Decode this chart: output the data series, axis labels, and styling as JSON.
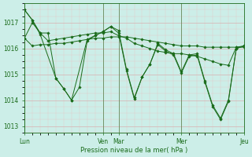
{
  "title": "",
  "xlabel": "Pression niveau de la mer( hPa )",
  "background_color": "#cceee8",
  "line_color": "#1a6b1a",
  "grid_color_major": "#d8b0b0",
  "grid_color_minor": "#e8c8c8",
  "ylim": [
    1012.75,
    1017.75
  ],
  "xlim": [
    0,
    168
  ],
  "day_labels": [
    "Lun",
    "Ven",
    "Mar",
    "Mer",
    "Jeu"
  ],
  "day_positions": [
    0,
    60,
    72,
    120,
    168
  ],
  "series1_x": [
    0,
    6,
    12,
    18,
    24,
    30,
    36,
    42,
    48,
    54,
    60,
    66,
    72,
    78,
    84,
    90,
    96,
    102,
    108,
    114,
    120,
    126,
    132,
    138,
    144,
    150,
    156,
    162,
    168
  ],
  "series1_y": [
    1016.4,
    1016.1,
    1016.15,
    1016.15,
    1016.2,
    1016.2,
    1016.25,
    1016.3,
    1016.35,
    1016.4,
    1016.4,
    1016.45,
    1016.45,
    1016.45,
    1016.4,
    1016.35,
    1016.3,
    1016.25,
    1016.2,
    1016.15,
    1016.1,
    1016.1,
    1016.1,
    1016.05,
    1016.05,
    1016.05,
    1016.05,
    1016.05,
    1016.05
  ],
  "series2_x": [
    0,
    6,
    12,
    18,
    24,
    30,
    36,
    42,
    48,
    54,
    60,
    66,
    72,
    78,
    84,
    90,
    96,
    102,
    108,
    114,
    120,
    126,
    132,
    138,
    144,
    150,
    156,
    162,
    168
  ],
  "series2_y": [
    1016.4,
    1017.0,
    1016.6,
    1016.6,
    1014.85,
    1014.45,
    1014.0,
    1014.5,
    1016.3,
    1016.5,
    1016.65,
    1016.85,
    1016.7,
    1015.2,
    1014.1,
    1014.9,
    1015.4,
    1016.2,
    1015.95,
    1015.8,
    1015.1,
    1015.75,
    1015.8,
    1014.75,
    1013.8,
    1013.3,
    1014.0,
    1016.0,
    1016.1
  ],
  "series3_x": [
    0,
    6,
    12,
    18,
    24,
    30,
    36,
    42,
    48,
    54,
    60,
    66,
    72,
    78,
    84,
    90,
    96,
    102,
    108,
    114,
    120,
    126,
    132,
    138,
    144,
    150,
    156,
    162,
    168
  ],
  "series3_y": [
    1017.5,
    1017.1,
    1016.6,
    1016.3,
    1016.35,
    1016.4,
    1016.45,
    1016.5,
    1016.55,
    1016.6,
    1016.6,
    1016.65,
    1016.5,
    1016.4,
    1016.2,
    1016.1,
    1016.0,
    1015.9,
    1015.85,
    1015.8,
    1015.8,
    1015.75,
    1015.7,
    1015.6,
    1015.5,
    1015.4,
    1015.35,
    1016.05,
    1016.1
  ],
  "series4_x": [
    0,
    6,
    12,
    24,
    30,
    36,
    48,
    54,
    60,
    66,
    72,
    78,
    84,
    90,
    96,
    102,
    108,
    114,
    120,
    126,
    132,
    138,
    144,
    150,
    156,
    162,
    168
  ],
  "series4_y": [
    1017.5,
    1017.1,
    1016.55,
    1014.85,
    1014.45,
    1014.0,
    1016.35,
    1016.5,
    1016.65,
    1016.85,
    1016.6,
    1015.15,
    1014.05,
    1014.9,
    1015.4,
    1016.15,
    1015.9,
    1015.75,
    1015.05,
    1015.7,
    1015.75,
    1014.7,
    1013.75,
    1013.25,
    1013.95,
    1016.0,
    1016.1
  ]
}
